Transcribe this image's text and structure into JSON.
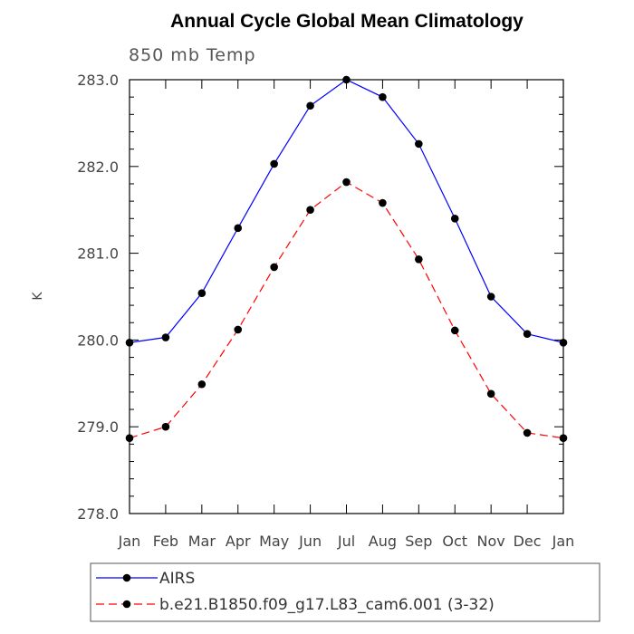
{
  "chart_data": {
    "type": "line",
    "title": "Annual Cycle Global Mean Climatology",
    "subtitle": "850 mb Temp",
    "ylabel": "K",
    "xlabel": "",
    "categories": [
      "Jan",
      "Feb",
      "Mar",
      "Apr",
      "May",
      "Jun",
      "Jul",
      "Aug",
      "Sep",
      "Oct",
      "Nov",
      "Dec",
      "Jan"
    ],
    "ylim": [
      278.0,
      283.0
    ],
    "yticks": [
      "278.0",
      "279.0",
      "280.0",
      "281.0",
      "282.0",
      "283.0"
    ],
    "grid": false,
    "legend_position": "bottom",
    "series": [
      {
        "name": "AIRS",
        "color": "#0000ff",
        "line_style": "solid",
        "values": [
          279.97,
          280.03,
          280.54,
          281.29,
          282.03,
          282.7,
          283.0,
          282.8,
          282.26,
          281.4,
          280.5,
          280.07,
          279.97
        ]
      },
      {
        "name": "b.e21.B1850.f09_g17.L83_cam6.001 (3-32)",
        "color": "#ff0000",
        "line_style": "dashed",
        "values": [
          278.87,
          279.0,
          279.49,
          280.12,
          280.84,
          281.5,
          281.82,
          281.58,
          280.93,
          280.11,
          279.38,
          278.93,
          278.87
        ]
      }
    ]
  }
}
